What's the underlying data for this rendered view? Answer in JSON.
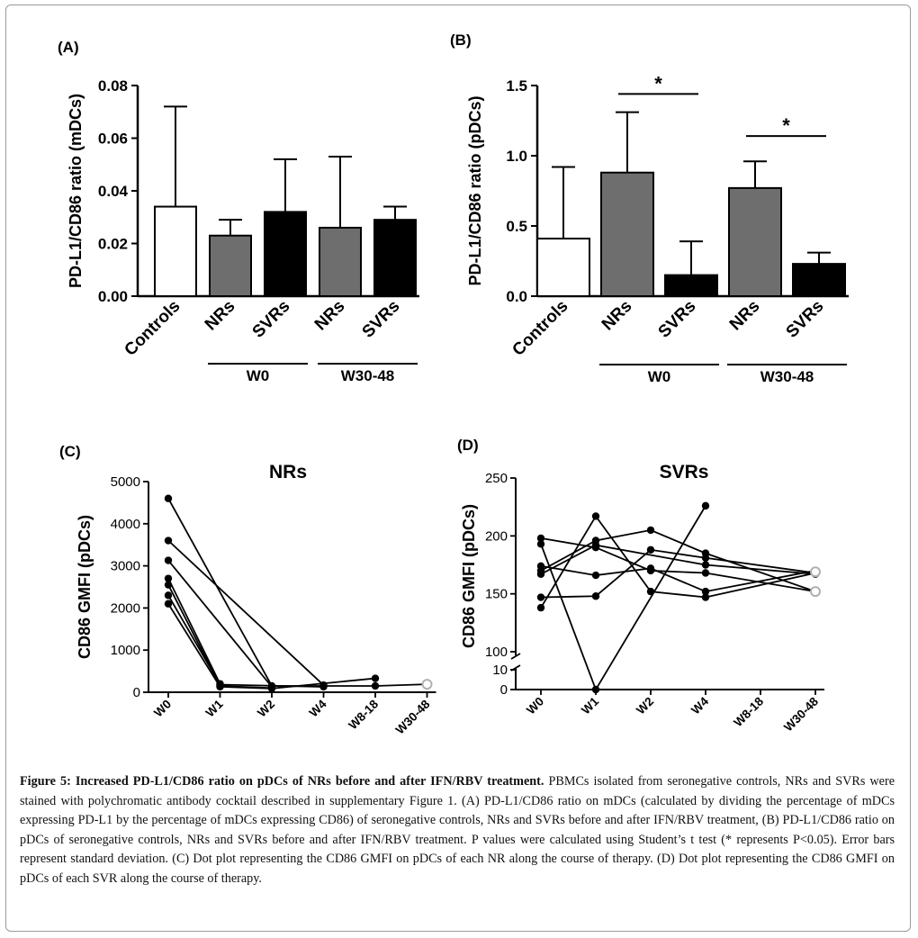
{
  "caption": {
    "title": "Figure 5: Increased PD-L1/CD86 ratio on pDCs of NRs before and after IFN/RBV treatment.",
    "text": "PBMCs isolated from seronegative controls, NRs and SVRs were stained with polychromatic antibody cocktail described in supplementary Figure 1. (A) PD-L1/CD86 ratio on mDCs (calculated by dividing the percentage of mDCs expressing PD-L1 by the percentage of mDCs expressing CD86) of seronegative controls, NRs and SVRs before and after IFN/RBV treatment, (B) PD-L1/CD86 ratio on pDCs of seronegative controls, NRs and SVRs before and after IFN/RBV treatment. P values were calculated using Student’s t test (* represents P<0.05). Error bars represent standard deviation. (C) Dot plot representing the CD86 GMFI on pDCs of each NR along the course of therapy. (D) Dot plot representing the CD86 GMFI on pDCs of each SVR along the course of therapy."
  },
  "colors": {
    "controls": "#ffffff",
    "nrs": "#6e6e6e",
    "svrs": "#000000",
    "open_marker": "#b0b0b0"
  },
  "chart_data": [
    {
      "panel": "(A)",
      "type": "bar",
      "title": "",
      "ylabel": "PD-L1/CD86 ratio (mDCs)",
      "ylim": [
        0,
        0.08
      ],
      "yticks": [
        "0.00",
        "0.02",
        "0.04",
        "0.06",
        "0.08"
      ],
      "categories": [
        "Controls",
        "NRs",
        "SVRs",
        "NRs",
        "SVRs"
      ],
      "values": [
        0.034,
        0.023,
        0.032,
        0.026,
        0.029
      ],
      "errors": [
        0.038,
        0.006,
        0.02,
        0.027,
        0.005
      ],
      "fills": [
        "controls",
        "nrs",
        "svrs",
        "nrs",
        "svrs"
      ],
      "groups": [
        {
          "label": "W0",
          "from": 1,
          "to": 2
        },
        {
          "label": "W30-48",
          "from": 3,
          "to": 4
        }
      ],
      "significance": []
    },
    {
      "panel": "(B)",
      "type": "bar",
      "title": "",
      "ylabel": "PD-L1/CD86 ratio (pDCs)",
      "ylim": [
        0,
        1.5
      ],
      "yticks": [
        "0.0",
        "0.5",
        "1.0",
        "1.5"
      ],
      "categories": [
        "Controls",
        "NRs",
        "SVRs",
        "NRs",
        "SVRs"
      ],
      "values": [
        0.41,
        0.88,
        0.15,
        0.77,
        0.23
      ],
      "errors": [
        0.51,
        0.43,
        0.24,
        0.19,
        0.08
      ],
      "fills": [
        "controls",
        "nrs",
        "svrs",
        "nrs",
        "svrs"
      ],
      "groups": [
        {
          "label": "W0",
          "from": 1,
          "to": 2
        },
        {
          "label": "W30-48",
          "from": 3,
          "to": 4
        }
      ],
      "significance": [
        {
          "from": 1,
          "to": 2,
          "y": 1.44,
          "label": "*"
        },
        {
          "from": 3,
          "to": 4,
          "y": 1.14,
          "label": "*"
        }
      ]
    },
    {
      "panel": "(C)",
      "type": "line",
      "title": "NRs",
      "ylabel": "CD86 GMFI (pDCs)",
      "ylim": [
        0,
        5000
      ],
      "yticks": [
        "0",
        "1000",
        "2000",
        "3000",
        "4000",
        "5000"
      ],
      "categories": [
        "W0",
        "W1",
        "W2",
        "W4",
        "W8-18",
        "W30-48"
      ],
      "series": [
        {
          "marker": "circle",
          "points": [
            [
              0,
              4600
            ],
            [
              2,
              150
            ],
            [
              3,
              150
            ],
            [
              4,
              150
            ],
            [
              5,
              190
            ]
          ]
        },
        {
          "marker": "circle",
          "points": [
            [
              0,
              3600
            ],
            [
              3,
              170
            ]
          ]
        },
        {
          "marker": "circle",
          "points": [
            [
              0,
              3130
            ],
            [
              2,
              130
            ]
          ]
        },
        {
          "marker": "circle",
          "points": [
            [
              0,
              2700
            ],
            [
              1,
              200
            ]
          ]
        },
        {
          "marker": "circle",
          "points": [
            [
              0,
              2550
            ],
            [
              1,
              150
            ],
            [
              2,
              100
            ]
          ]
        },
        {
          "marker": "circle",
          "points": [
            [
              0,
              2300
            ],
            [
              1,
              180
            ],
            [
              3,
              130
            ]
          ]
        },
        {
          "marker": "circle",
          "points": [
            [
              0,
              2100
            ],
            [
              1,
              130
            ],
            [
              2,
              90
            ],
            [
              4,
              330
            ]
          ]
        }
      ],
      "open_markers": [
        {
          "x": 5,
          "y": 190
        }
      ]
    },
    {
      "panel": "(D)",
      "type": "line",
      "title": "SVRs",
      "ylabel": "CD86 GMFI (pDCs)",
      "ylim": [
        0,
        250
      ],
      "axis_break": [
        10,
        100
      ],
      "yticks": [
        "0",
        "10",
        "100",
        "150",
        "200",
        "250"
      ],
      "categories": [
        "W0",
        "W1",
        "W2",
        "W4",
        "W8-18",
        "W30-48"
      ],
      "series": [
        {
          "marker": "circle",
          "points": [
            [
              0,
              198
            ],
            [
              1,
              190
            ],
            [
              2,
              170
            ],
            [
              3,
              168
            ],
            [
              5,
              152
            ]
          ]
        },
        {
          "marker": "circle",
          "points": [
            [
              0,
              193
            ],
            [
              1,
              0
            ],
            [
              3,
              226
            ]
          ]
        },
        {
          "marker": "circle",
          "points": [
            [
              0,
              174
            ],
            [
              1,
              166
            ],
            [
              2,
              172
            ],
            [
              3,
              152
            ],
            [
              5,
              170
            ]
          ]
        },
        {
          "marker": "circle",
          "points": [
            [
              0,
              170
            ],
            [
              1,
              196
            ],
            [
              2,
              205
            ],
            [
              3,
              185
            ],
            [
              5,
              152
            ]
          ]
        },
        {
          "marker": "circle",
          "points": [
            [
              0,
              167
            ],
            [
              1,
              192
            ],
            [
              3,
              175
            ],
            [
              5,
              167
            ]
          ]
        },
        {
          "marker": "circle",
          "points": [
            [
              0,
              147
            ],
            [
              1,
              148
            ],
            [
              2,
              188
            ],
            [
              3,
              181
            ],
            [
              5,
              168
            ]
          ]
        },
        {
          "marker": "circle",
          "points": [
            [
              0,
              138
            ],
            [
              1,
              217
            ],
            [
              2,
              152
            ],
            [
              3,
              147
            ],
            [
              5,
              168
            ]
          ]
        }
      ],
      "open_markers": [
        {
          "x": 5,
          "y": 169
        },
        {
          "x": 5,
          "y": 152
        }
      ]
    }
  ]
}
